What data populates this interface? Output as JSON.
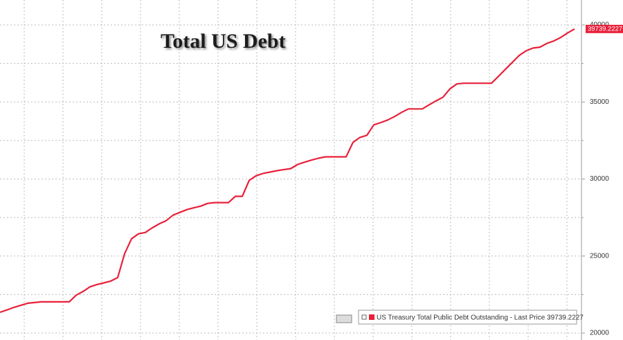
{
  "chart_data": {
    "type": "line",
    "title": "Total US Debt",
    "legend": "US Treasury Total Public Debt Outstanding - Last Price 39739.2227",
    "last_price_label": "39739.2227",
    "series": [
      {
        "name": "US Treasury Total Public Debt Outstanding",
        "color": "#e8203a",
        "values": [
          21350,
          21500,
          21665,
          21800,
          21935,
          21980,
          22025,
          22025,
          22025,
          22025,
          22025,
          22460,
          22700,
          23000,
          23150,
          23260,
          23375,
          23600,
          25150,
          26120,
          26440,
          26530,
          26830,
          27090,
          27295,
          27655,
          27835,
          28015,
          28130,
          28240,
          28420,
          28470,
          28470,
          28470,
          28875,
          28875,
          29910,
          30210,
          30360,
          30450,
          30540,
          30610,
          30675,
          30945,
          31095,
          31230,
          31350,
          31440,
          31440,
          31440,
          31440,
          32385,
          32700,
          32835,
          33515,
          33665,
          33830,
          34055,
          34325,
          34550,
          34550,
          34550,
          34820,
          35075,
          35315,
          35855,
          36170,
          36215,
          36215,
          36215,
          36215,
          36215,
          36660,
          37115,
          37565,
          38020,
          38320,
          38500,
          38560,
          38800,
          38965,
          39190,
          39480,
          39739.2227
        ]
      }
    ],
    "ylim": [
      19550,
      41620
    ],
    "yticks": [
      20000,
      25000,
      30000,
      35000,
      40000
    ],
    "minor_yticks": [
      22500,
      27500,
      32500,
      37500
    ],
    "grid": true,
    "axis_side": "right"
  }
}
